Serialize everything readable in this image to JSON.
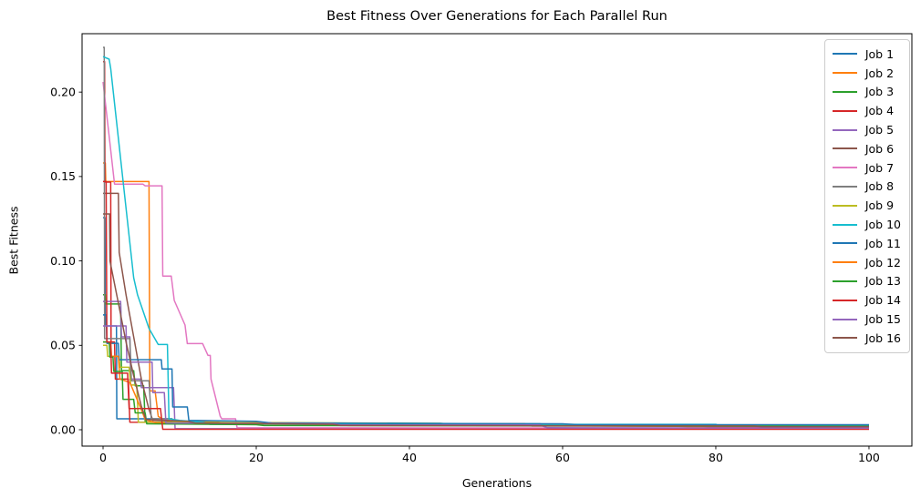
{
  "figure": {
    "title": "Best Fitness Over Generations for Each Parallel Run",
    "xlabel": "Generations",
    "ylabel": "Best Fitness"
  },
  "chart_data": {
    "type": "line",
    "title": "Best Fitness Over Generations for Each Parallel Run",
    "xlabel": "Generations",
    "ylabel": "Best Fitness",
    "grid": false,
    "legend_position": "upper right",
    "xlim": [
      -2.74,
      105.6
    ],
    "ylim": [
      -0.0097,
      0.2346
    ],
    "x_ticks": [
      0,
      20,
      40,
      60,
      80,
      100
    ],
    "x_tick_labels": [
      "0",
      "20",
      "40",
      "60",
      "80",
      "100"
    ],
    "y_ticks": [
      0.0,
      0.05,
      0.1,
      0.15,
      0.2
    ],
    "y_tick_labels": [
      "0.00",
      "0.05",
      "0.10",
      "0.15",
      "0.20"
    ],
    "series": [
      {
        "name": "Job 1",
        "color": "#1f77b4",
        "points": [
          [
            0,
            0.1256
          ],
          [
            0.25,
            0.1256
          ],
          [
            0.3,
            0.0615
          ],
          [
            1.75,
            0.0615
          ],
          [
            1.8,
            0.0065
          ],
          [
            9,
            0.0065
          ],
          [
            9.2,
            0.0045
          ],
          [
            14,
            0.0045
          ],
          [
            14.5,
            0.0035
          ],
          [
            57,
            0.0035
          ],
          [
            58,
            0.0028
          ],
          [
            100,
            0.0028
          ]
        ]
      },
      {
        "name": "Job 2",
        "color": "#ff7f0e",
        "points": [
          [
            0,
            0.158
          ],
          [
            0.3,
            0.158
          ],
          [
            0.35,
            0.147
          ],
          [
            6,
            0.147
          ],
          [
            6.1,
            0.023
          ],
          [
            6.8,
            0.023
          ],
          [
            7.2,
            0.008
          ],
          [
            8,
            0.0055
          ],
          [
            15,
            0.0045
          ],
          [
            16,
            0.0038
          ],
          [
            55,
            0.0032
          ],
          [
            57,
            0.0025
          ],
          [
            75,
            0.002
          ],
          [
            77,
            0.0016
          ],
          [
            100,
            0.0016
          ]
        ]
      },
      {
        "name": "Job 3",
        "color": "#2ca02c",
        "points": [
          [
            0,
            0.08
          ],
          [
            0.3,
            0.08
          ],
          [
            0.35,
            0.0745
          ],
          [
            2.3,
            0.0745
          ],
          [
            2.4,
            0.035
          ],
          [
            4,
            0.035
          ],
          [
            4.2,
            0.026
          ],
          [
            5.3,
            0.026
          ],
          [
            5.5,
            0.0045
          ],
          [
            44,
            0.0038
          ],
          [
            46,
            0.0032
          ],
          [
            57,
            0.0032
          ],
          [
            58,
            0.0025
          ],
          [
            100,
            0.0022
          ]
        ]
      },
      {
        "name": "Job 4",
        "color": "#d62728",
        "points": [
          [
            0,
            0.218
          ],
          [
            0.2,
            0.218
          ],
          [
            0.25,
            0.1467
          ],
          [
            1,
            0.1467
          ],
          [
            1.05,
            0.052
          ],
          [
            1.5,
            0.052
          ],
          [
            1.6,
            0.03
          ],
          [
            3.3,
            0.03
          ],
          [
            3.5,
            0.0045
          ],
          [
            33,
            0.0038
          ],
          [
            34,
            0.0035
          ],
          [
            55,
            0.0035
          ],
          [
            56,
            0.0022
          ],
          [
            78,
            0.0022
          ],
          [
            79,
            0.0018
          ],
          [
            100,
            0.0015
          ]
        ]
      },
      {
        "name": "Job 5",
        "color": "#9467bd",
        "points": [
          [
            0,
            0.076
          ],
          [
            2.3,
            0.076
          ],
          [
            2.4,
            0.055
          ],
          [
            3.5,
            0.055
          ],
          [
            3.6,
            0.03
          ],
          [
            4.9,
            0.03
          ],
          [
            5,
            0.025
          ],
          [
            9.2,
            0.025
          ],
          [
            9.4,
            0.0006
          ],
          [
            100,
            0.0006
          ]
        ]
      },
      {
        "name": "Job 6",
        "color": "#8c564b",
        "points": [
          [
            0,
            0.14
          ],
          [
            2,
            0.14
          ],
          [
            2.1,
            0.105
          ],
          [
            3,
            0.08
          ],
          [
            4,
            0.055
          ],
          [
            5,
            0.03
          ],
          [
            6,
            0.012
          ],
          [
            6.5,
            0.0055
          ],
          [
            12,
            0.0048
          ],
          [
            13,
            0.0038
          ],
          [
            45,
            0.0035
          ],
          [
            46,
            0.0028
          ],
          [
            100,
            0.0022
          ]
        ]
      },
      {
        "name": "Job 7",
        "color": "#e377c2",
        "points": [
          [
            0,
            0.206
          ],
          [
            1.5,
            0.1455
          ],
          [
            5.2,
            0.1455
          ],
          [
            5.5,
            0.1445
          ],
          [
            7.7,
            0.1445
          ],
          [
            7.8,
            0.091
          ],
          [
            8.9,
            0.091
          ],
          [
            9.3,
            0.0766
          ],
          [
            10.7,
            0.062
          ],
          [
            11,
            0.051
          ],
          [
            13,
            0.051
          ],
          [
            13.7,
            0.044
          ],
          [
            14,
            0.044
          ],
          [
            14.1,
            0.03
          ],
          [
            15.3,
            0.008
          ],
          [
            15.5,
            0.0065
          ],
          [
            17.3,
            0.0065
          ],
          [
            17.5,
            0.0012
          ],
          [
            100,
            0.001
          ]
        ]
      },
      {
        "name": "Job 8",
        "color": "#7f7f7f",
        "points": [
          [
            0,
            0.2265
          ],
          [
            0.15,
            0.2265
          ],
          [
            0.2,
            0.054
          ],
          [
            3.5,
            0.054
          ],
          [
            3.7,
            0.029
          ],
          [
            6,
            0.029
          ],
          [
            6.3,
            0.0065
          ],
          [
            9,
            0.0065
          ],
          [
            9.2,
            0.0045
          ],
          [
            20,
            0.004
          ],
          [
            22,
            0.0035
          ],
          [
            55,
            0.0035
          ],
          [
            56,
            0.0025
          ],
          [
            100,
            0.002
          ]
        ]
      },
      {
        "name": "Job 9",
        "color": "#bcbd22",
        "points": [
          [
            0,
            0.05
          ],
          [
            0.5,
            0.05
          ],
          [
            0.6,
            0.0435
          ],
          [
            2.1,
            0.0435
          ],
          [
            2.2,
            0.037
          ],
          [
            3.4,
            0.037
          ],
          [
            3.6,
            0.0265
          ],
          [
            4.4,
            0.0265
          ],
          [
            4.6,
            0.0045
          ],
          [
            37,
            0.0038
          ],
          [
            38,
            0.0032
          ],
          [
            57,
            0.0032
          ],
          [
            58,
            0.0025
          ],
          [
            100,
            0.002
          ]
        ]
      },
      {
        "name": "Job 10",
        "color": "#17becf",
        "points": [
          [
            0,
            0.221
          ],
          [
            0.8,
            0.2195
          ],
          [
            1,
            0.214
          ],
          [
            4,
            0.09
          ],
          [
            4.5,
            0.08
          ],
          [
            6,
            0.06
          ],
          [
            7.2,
            0.0505
          ],
          [
            8.4,
            0.0505
          ],
          [
            8.6,
            0.0065
          ],
          [
            10,
            0.0055
          ],
          [
            13,
            0.0045
          ],
          [
            14,
            0.0032
          ],
          [
            80,
            0.0032
          ],
          [
            80.5,
            0.0022
          ],
          [
            100,
            0.0022
          ]
        ]
      },
      {
        "name": "Job 11",
        "color": "#1f77b4",
        "points": [
          [
            0,
            0.068
          ],
          [
            0.4,
            0.068
          ],
          [
            0.5,
            0.0512
          ],
          [
            2,
            0.0512
          ],
          [
            2.1,
            0.0415
          ],
          [
            7.6,
            0.0415
          ],
          [
            7.7,
            0.036
          ],
          [
            9,
            0.036
          ],
          [
            9.1,
            0.0135
          ],
          [
            11,
            0.0135
          ],
          [
            11.2,
            0.0055
          ],
          [
            20,
            0.005
          ],
          [
            22,
            0.004
          ],
          [
            60,
            0.0035
          ],
          [
            62,
            0.003
          ],
          [
            100,
            0.003
          ]
        ]
      },
      {
        "name": "Job 12",
        "color": "#ff7f0e",
        "points": [
          [
            0,
            0.052
          ],
          [
            1,
            0.052
          ],
          [
            1.1,
            0.0435
          ],
          [
            2,
            0.0435
          ],
          [
            2.2,
            0.03
          ],
          [
            3.5,
            0.028
          ],
          [
            5,
            0.012
          ],
          [
            5.5,
            0.006
          ],
          [
            7,
            0.004
          ],
          [
            30,
            0.0032
          ],
          [
            32,
            0.0025
          ],
          [
            100,
            0.002
          ]
        ]
      },
      {
        "name": "Job 13",
        "color": "#2ca02c",
        "points": [
          [
            0,
            0.052
          ],
          [
            0.8,
            0.052
          ],
          [
            0.9,
            0.043
          ],
          [
            1.3,
            0.043
          ],
          [
            1.4,
            0.0345
          ],
          [
            2.5,
            0.0345
          ],
          [
            2.6,
            0.018
          ],
          [
            4,
            0.018
          ],
          [
            4.2,
            0.01
          ],
          [
            5.5,
            0.01
          ],
          [
            5.7,
            0.0035
          ],
          [
            20,
            0.003
          ],
          [
            21,
            0.0025
          ],
          [
            100,
            0.002
          ]
        ]
      },
      {
        "name": "Job 14",
        "color": "#d62728",
        "points": [
          [
            0,
            0.147
          ],
          [
            0.4,
            0.147
          ],
          [
            0.5,
            0.052
          ],
          [
            1,
            0.052
          ],
          [
            1.1,
            0.0335
          ],
          [
            3.2,
            0.0335
          ],
          [
            3.4,
            0.0125
          ],
          [
            7.5,
            0.0125
          ],
          [
            7.8,
            0.0003
          ],
          [
            100,
            0.0003
          ]
        ]
      },
      {
        "name": "Job 15",
        "color": "#9467bd",
        "points": [
          [
            0,
            0.0615
          ],
          [
            3,
            0.0615
          ],
          [
            3.1,
            0.04
          ],
          [
            6.4,
            0.04
          ],
          [
            6.5,
            0.022
          ],
          [
            8,
            0.022
          ],
          [
            8.2,
            0.004
          ],
          [
            30,
            0.0035
          ],
          [
            31,
            0.0028
          ],
          [
            57,
            0.0028
          ],
          [
            58,
            0.0012
          ],
          [
            100,
            0.001
          ]
        ]
      },
      {
        "name": "Job 16",
        "color": "#8c564b",
        "points": [
          [
            0,
            0.1278
          ],
          [
            0.85,
            0.1278
          ],
          [
            0.9,
            0.1
          ],
          [
            2,
            0.075
          ],
          [
            3,
            0.052
          ],
          [
            4,
            0.032
          ],
          [
            5,
            0.014
          ],
          [
            5.6,
            0.006
          ],
          [
            11,
            0.005
          ],
          [
            12,
            0.004
          ],
          [
            30,
            0.0032
          ],
          [
            31,
            0.0025
          ],
          [
            85,
            0.0022
          ],
          [
            86,
            0.0018
          ],
          [
            100,
            0.0018
          ]
        ]
      }
    ]
  }
}
